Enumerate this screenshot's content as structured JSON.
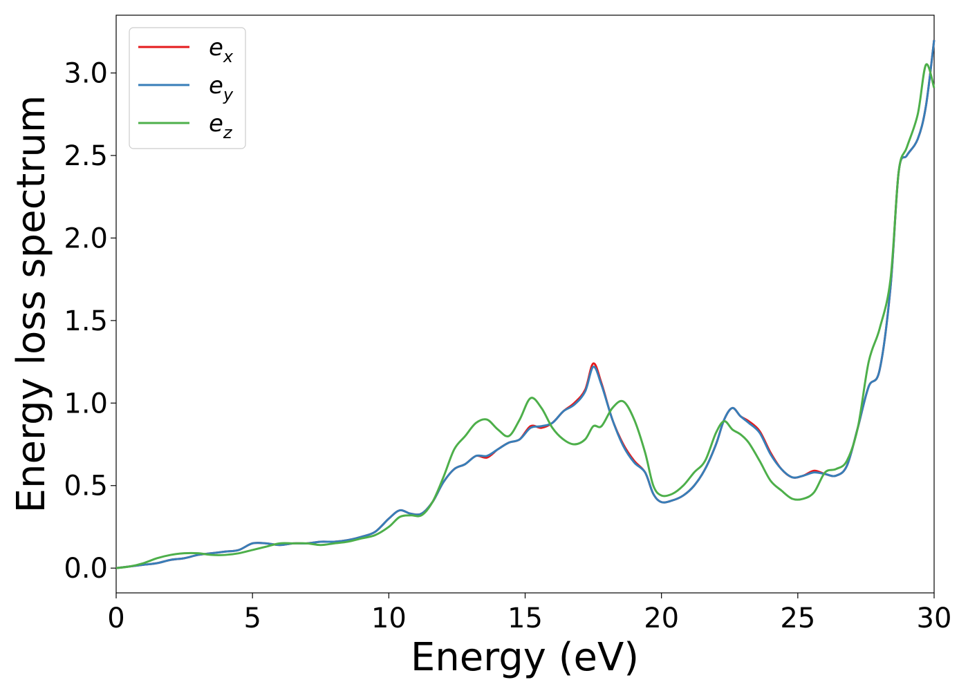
{
  "chart_data": {
    "type": "line",
    "title": "",
    "xlabel": "Energy (eV)",
    "ylabel": "Energy loss spectrum",
    "xlim": [
      0,
      30
    ],
    "ylim": [
      -0.15,
      3.35
    ],
    "xticks": [
      0,
      5,
      10,
      15,
      20,
      25,
      30
    ],
    "yticks": [
      0.0,
      0.5,
      1.0,
      1.5,
      2.0,
      2.5,
      3.0
    ],
    "xtick_labels": [
      "0",
      "5",
      "10",
      "15",
      "20",
      "25",
      "30"
    ],
    "ytick_labels": [
      "0.0",
      "0.5",
      "1.0",
      "1.5",
      "2.0",
      "2.5",
      "3.0"
    ],
    "grid": false,
    "legend_position": "top-left",
    "series": [
      {
        "name": "e",
        "subscript": "x",
        "color": "#e41a1c",
        "x": [
          0,
          0.5,
          1,
          1.5,
          2,
          2.5,
          3,
          3.5,
          4,
          4.5,
          5,
          5.5,
          6,
          6.5,
          7,
          7.5,
          8,
          8.5,
          9,
          9.5,
          10,
          10.4,
          10.8,
          11.2,
          11.6,
          12,
          12.4,
          12.8,
          13.2,
          13.6,
          14,
          14.4,
          14.8,
          15.2,
          15.6,
          16,
          16.4,
          16.8,
          17.2,
          17.5,
          17.8,
          18.2,
          18.6,
          19,
          19.4,
          19.7,
          20,
          20.4,
          20.8,
          21.2,
          21.6,
          22,
          22.3,
          22.6,
          22.9,
          23.2,
          23.6,
          24,
          24.4,
          24.8,
          25.2,
          25.6,
          26,
          26.4,
          26.8,
          27.2,
          27.6,
          28,
          28.4,
          28.7,
          29,
          29.4,
          29.7,
          30
        ],
        "values": [
          0.0,
          0.01,
          0.02,
          0.03,
          0.05,
          0.06,
          0.08,
          0.09,
          0.1,
          0.11,
          0.15,
          0.15,
          0.14,
          0.15,
          0.15,
          0.16,
          0.16,
          0.17,
          0.19,
          0.22,
          0.3,
          0.35,
          0.33,
          0.33,
          0.4,
          0.52,
          0.6,
          0.63,
          0.68,
          0.67,
          0.72,
          0.76,
          0.78,
          0.86,
          0.85,
          0.88,
          0.95,
          1.0,
          1.08,
          1.24,
          1.12,
          0.9,
          0.75,
          0.65,
          0.58,
          0.45,
          0.4,
          0.41,
          0.44,
          0.5,
          0.6,
          0.75,
          0.9,
          0.97,
          0.92,
          0.89,
          0.83,
          0.7,
          0.6,
          0.55,
          0.56,
          0.59,
          0.57,
          0.56,
          0.62,
          0.85,
          1.1,
          1.2,
          1.7,
          2.4,
          2.5,
          2.6,
          2.8,
          3.2
        ]
      },
      {
        "name": "e",
        "subscript": "y",
        "color": "#377eb8",
        "x": [
          0,
          0.5,
          1,
          1.5,
          2,
          2.5,
          3,
          3.5,
          4,
          4.5,
          5,
          5.5,
          6,
          6.5,
          7,
          7.5,
          8,
          8.5,
          9,
          9.5,
          10,
          10.4,
          10.8,
          11.2,
          11.6,
          12,
          12.4,
          12.8,
          13.2,
          13.6,
          14,
          14.4,
          14.8,
          15.2,
          15.6,
          16,
          16.4,
          16.8,
          17.2,
          17.5,
          17.8,
          18.2,
          18.6,
          19,
          19.4,
          19.7,
          20,
          20.4,
          20.8,
          21.2,
          21.6,
          22,
          22.3,
          22.6,
          22.9,
          23.2,
          23.6,
          24,
          24.4,
          24.8,
          25.2,
          25.6,
          26,
          26.4,
          26.8,
          27.2,
          27.6,
          28,
          28.4,
          28.7,
          29,
          29.4,
          29.7,
          30
        ],
        "values": [
          0.0,
          0.01,
          0.02,
          0.03,
          0.05,
          0.06,
          0.08,
          0.09,
          0.1,
          0.11,
          0.15,
          0.15,
          0.14,
          0.15,
          0.15,
          0.16,
          0.16,
          0.17,
          0.19,
          0.22,
          0.3,
          0.35,
          0.33,
          0.33,
          0.4,
          0.52,
          0.6,
          0.63,
          0.68,
          0.68,
          0.72,
          0.76,
          0.78,
          0.85,
          0.86,
          0.88,
          0.95,
          0.99,
          1.07,
          1.22,
          1.11,
          0.9,
          0.74,
          0.64,
          0.58,
          0.45,
          0.4,
          0.41,
          0.44,
          0.5,
          0.6,
          0.75,
          0.9,
          0.97,
          0.92,
          0.88,
          0.82,
          0.69,
          0.6,
          0.55,
          0.56,
          0.58,
          0.57,
          0.56,
          0.62,
          0.85,
          1.1,
          1.2,
          1.7,
          2.4,
          2.5,
          2.6,
          2.8,
          3.2
        ]
      },
      {
        "name": "e",
        "subscript": "z",
        "color": "#4daf4a",
        "x": [
          0,
          0.5,
          1,
          1.5,
          2,
          2.5,
          3,
          3.5,
          4,
          4.5,
          5,
          5.5,
          6,
          6.5,
          7,
          7.5,
          8,
          8.5,
          9,
          9.5,
          10,
          10.4,
          10.8,
          11.2,
          11.6,
          12,
          12.4,
          12.8,
          13.2,
          13.6,
          14,
          14.4,
          14.8,
          15.2,
          15.6,
          16,
          16.4,
          16.8,
          17.2,
          17.5,
          17.8,
          18.2,
          18.6,
          19,
          19.4,
          19.7,
          20,
          20.4,
          20.8,
          21.2,
          21.6,
          22,
          22.3,
          22.6,
          22.9,
          23.2,
          23.6,
          24,
          24.4,
          24.8,
          25.2,
          25.6,
          26,
          26.4,
          26.8,
          27.2,
          27.6,
          28,
          28.4,
          28.7,
          29,
          29.4,
          29.7,
          30
        ],
        "values": [
          0.0,
          0.01,
          0.03,
          0.06,
          0.08,
          0.09,
          0.09,
          0.08,
          0.08,
          0.09,
          0.11,
          0.13,
          0.15,
          0.15,
          0.15,
          0.14,
          0.15,
          0.16,
          0.18,
          0.2,
          0.25,
          0.31,
          0.32,
          0.32,
          0.4,
          0.55,
          0.72,
          0.8,
          0.88,
          0.9,
          0.84,
          0.8,
          0.9,
          1.03,
          0.97,
          0.85,
          0.78,
          0.75,
          0.78,
          0.86,
          0.86,
          0.97,
          1.01,
          0.9,
          0.7,
          0.5,
          0.44,
          0.45,
          0.5,
          0.58,
          0.65,
          0.82,
          0.89,
          0.84,
          0.81,
          0.76,
          0.65,
          0.53,
          0.47,
          0.42,
          0.42,
          0.46,
          0.58,
          0.6,
          0.65,
          0.85,
          1.25,
          1.45,
          1.75,
          2.4,
          2.55,
          2.75,
          3.05,
          2.91
        ]
      }
    ]
  }
}
